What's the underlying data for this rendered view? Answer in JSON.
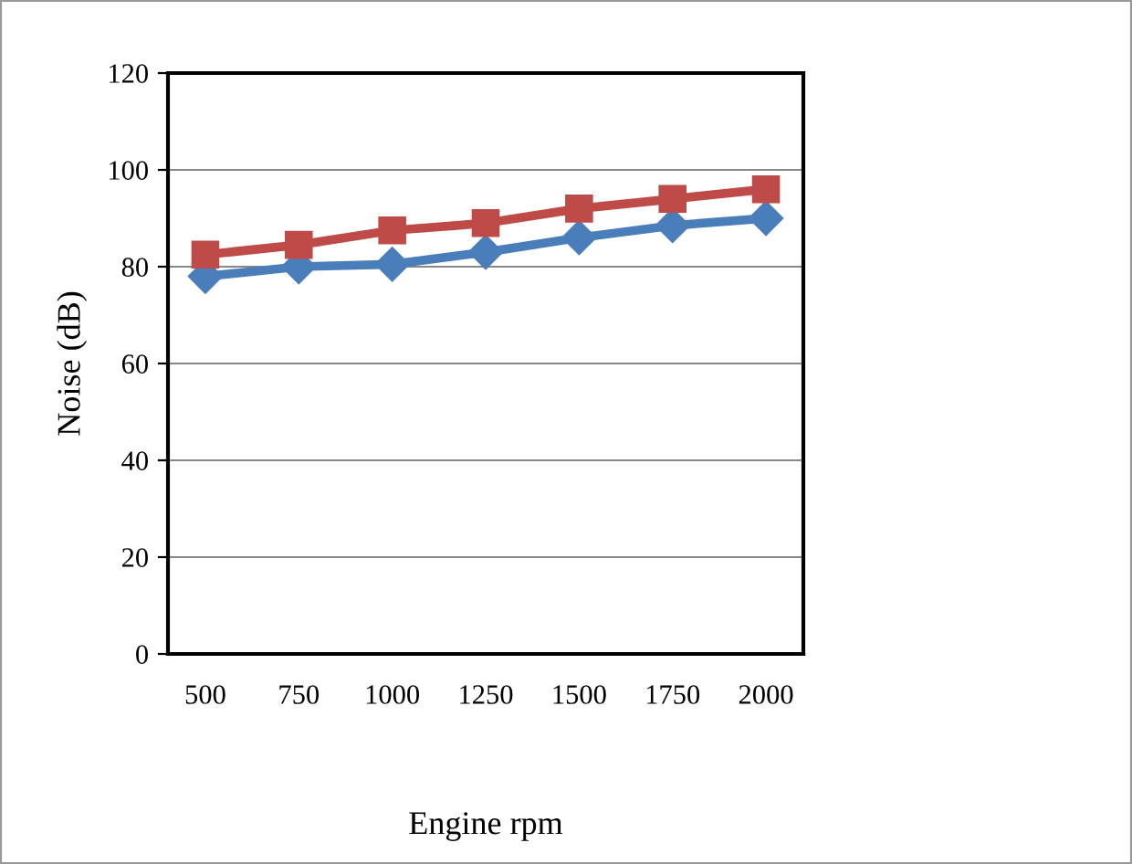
{
  "chart_data": {
    "type": "line",
    "xlabel": "Engine rpm",
    "ylabel": "Noise (dB)",
    "categories": [
      "500",
      "750",
      "1000",
      "1250",
      "1500",
      "1750",
      "2000"
    ],
    "series": [
      {
        "color": "#4a7ebb",
        "marker": "diamond",
        "values": [
          78,
          80,
          80.5,
          83,
          86,
          88.5,
          90
        ]
      },
      {
        "color": "#be4b48",
        "marker": "square",
        "values": [
          82.5,
          84.5,
          87.5,
          89,
          92,
          94,
          96
        ]
      }
    ],
    "ylim": [
      0,
      120
    ],
    "yticks": [
      0,
      20,
      40,
      60,
      80,
      100,
      120
    ],
    "grid": "y",
    "line_style": "solid"
  }
}
